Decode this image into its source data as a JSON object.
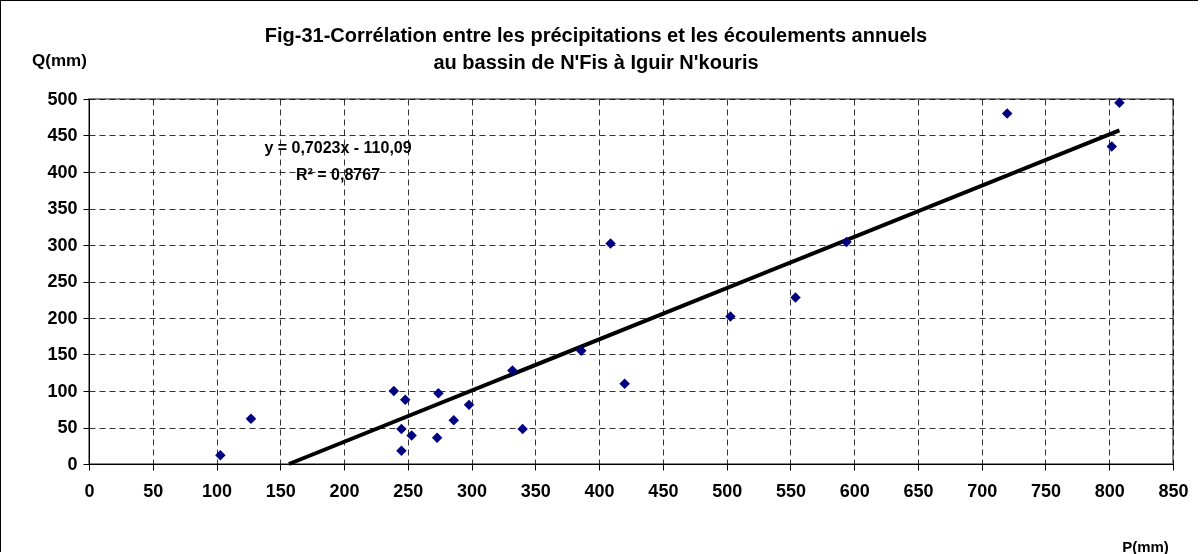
{
  "chart_data": {
    "type": "scatter",
    "title": [
      "Fig-31-Corrélation entre les précipitations et les écoulements annuels",
      "au bassin de N'Fis à Iguir N'kouris"
    ],
    "xlabel": "P(mm)",
    "ylabel": "Q(mm)",
    "xlim": [
      0,
      850
    ],
    "xticks": [
      0,
      50,
      100,
      150,
      200,
      250,
      300,
      350,
      400,
      450,
      500,
      550,
      600,
      650,
      700,
      750,
      800,
      850
    ],
    "ylim": [
      0,
      500
    ],
    "yticks": [
      0,
      50,
      100,
      150,
      200,
      250,
      300,
      350,
      400,
      450,
      500
    ],
    "grid": true,
    "marker": "diamond",
    "annotations": [
      "y = 0,7023x - 110,09",
      "R² = 0,8767"
    ],
    "series": [
      {
        "type": "scatter",
        "color": "#000080",
        "x": [
          103,
          127,
          239,
          248,
          245,
          253,
          245,
          274,
          273,
          286,
          298,
          332,
          340,
          386,
          409,
          420,
          503,
          554,
          594,
          720,
          808,
          802
        ],
        "values": [
          12,
          62,
          100,
          88,
          48,
          39,
          18,
          97,
          36,
          60,
          81,
          128,
          48,
          155,
          302,
          110,
          202,
          228,
          304,
          480,
          495,
          435
        ]
      },
      {
        "type": "line",
        "color": "#000000",
        "line_style": "solid",
        "marker": "none",
        "x": [
          156.76,
          808
        ],
        "values": [
          0,
          457
        ]
      }
    ]
  }
}
